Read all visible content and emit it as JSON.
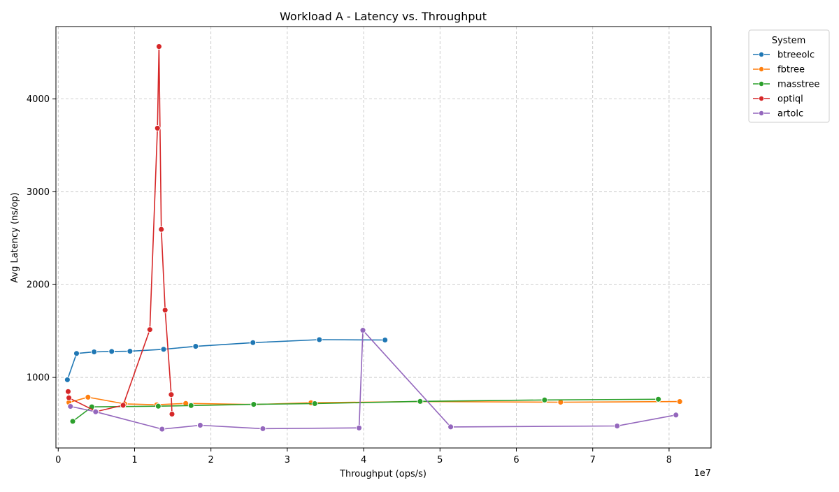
{
  "chart_data": {
    "type": "line",
    "title": "Workload A - Latency vs. Throughput",
    "xlabel": "Throughput (ops/s)",
    "ylabel": "Avg Latency (ns/op)",
    "x_offset_label": "1e7",
    "xlim": [
      -300000,
      85500000
    ],
    "ylim": [
      240,
      4780
    ],
    "x_ticks": [
      0,
      10000000,
      20000000,
      30000000,
      40000000,
      50000000,
      60000000,
      70000000,
      80000000
    ],
    "x_tick_labels": [
      "0",
      "1",
      "2",
      "3",
      "4",
      "5",
      "6",
      "7",
      "8"
    ],
    "y_ticks": [
      1000,
      2000,
      3000,
      4000
    ],
    "y_tick_labels": [
      "1000",
      "2000",
      "3000",
      "4000"
    ],
    "grid": true,
    "legend": {
      "title": "System",
      "position": "outside-right"
    },
    "series": [
      {
        "name": "btreeolc",
        "color": "#1f77b4",
        "points": [
          [
            1200000,
            975
          ],
          [
            2400000,
            1258
          ],
          [
            4700000,
            1275
          ],
          [
            7000000,
            1280
          ],
          [
            9400000,
            1282
          ],
          [
            13800000,
            1303
          ],
          [
            18000000,
            1335
          ],
          [
            25500000,
            1375
          ],
          [
            34200000,
            1407
          ],
          [
            42800000,
            1403
          ]
        ]
      },
      {
        "name": "fbtree",
        "color": "#ff7f0e",
        "points": [
          [
            1400000,
            730
          ],
          [
            3900000,
            787
          ],
          [
            8700000,
            715
          ],
          [
            12900000,
            705
          ],
          [
            16700000,
            720
          ],
          [
            25600000,
            708
          ],
          [
            33100000,
            727
          ],
          [
            47500000,
            740
          ],
          [
            65800000,
            733
          ],
          [
            81400000,
            740
          ]
        ]
      },
      {
        "name": "masstree",
        "color": "#2ca02c",
        "points": [
          [
            1900000,
            527
          ],
          [
            4400000,
            683
          ],
          [
            13100000,
            690
          ],
          [
            17400000,
            697
          ],
          [
            25600000,
            710
          ],
          [
            33600000,
            718
          ],
          [
            47400000,
            742
          ],
          [
            63700000,
            757
          ],
          [
            78600000,
            765
          ]
        ]
      },
      {
        "name": "optiql",
        "color": "#d62728",
        "points": [
          [
            1300000,
            848
          ],
          [
            1400000,
            780
          ],
          [
            5000000,
            632
          ],
          [
            8500000,
            700
          ],
          [
            12000000,
            1515
          ],
          [
            13000000,
            3685
          ],
          [
            13200000,
            4565
          ],
          [
            13500000,
            2595
          ],
          [
            14000000,
            1725
          ],
          [
            14800000,
            815
          ],
          [
            14900000,
            605
          ]
        ]
      },
      {
        "name": "artolc",
        "color": "#9467bd",
        "points": [
          [
            1600000,
            688
          ],
          [
            4900000,
            630
          ],
          [
            13600000,
            443
          ],
          [
            18600000,
            485
          ],
          [
            26800000,
            448
          ],
          [
            39400000,
            456
          ],
          [
            39900000,
            1508
          ],
          [
            51400000,
            467
          ],
          [
            73200000,
            477
          ],
          [
            80900000,
            595
          ]
        ]
      }
    ]
  }
}
